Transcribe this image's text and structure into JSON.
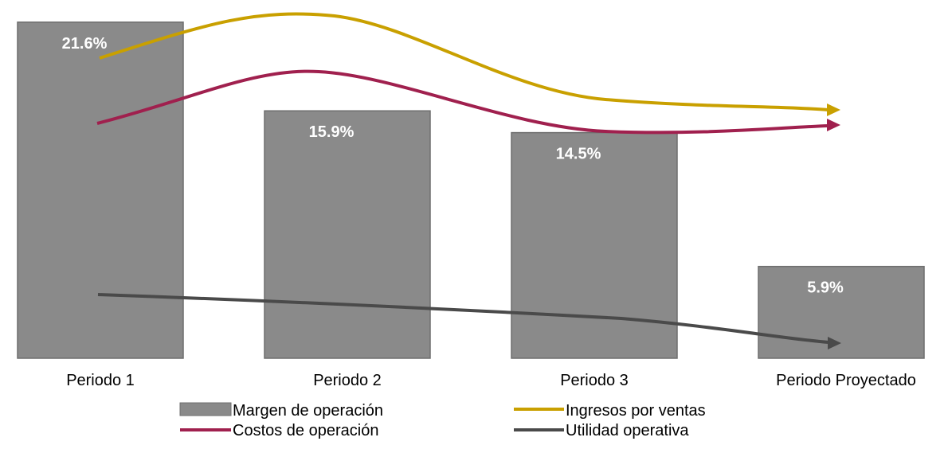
{
  "chart_data": {
    "type": "bar",
    "title": "",
    "xlabel": "",
    "ylabel": "",
    "ylim": [
      0,
      22
    ],
    "grid": false,
    "categories": [
      "Periodo 1",
      "Periodo 2",
      "Periodo 3",
      "Periodo Proyectado"
    ],
    "series": [
      {
        "name": "Margen de operación",
        "kind": "bar",
        "values": [
          21.6,
          15.9,
          14.5,
          5.9
        ],
        "labels": [
          "21.6%",
          "15.9%",
          "14.5%",
          "5.9%"
        ],
        "color": "#8a8a8a",
        "edge_color": "#6e6e6e"
      }
    ],
    "trend_lines": [
      {
        "name": "Ingresos por ventas",
        "color": "#c9a000",
        "shape": "rises then falls"
      },
      {
        "name": "Costos de operación",
        "color": "#a0204e",
        "shape": "rises then falls"
      },
      {
        "name": "Utilidad operativa",
        "color": "#4a4a4a",
        "shape": "decreasing"
      }
    ],
    "legend": {
      "placement": "bottom",
      "entries": [
        "Margen de operación",
        "Ingresos por ventas",
        "Costos de operación",
        "Utilidad operativa"
      ]
    }
  }
}
